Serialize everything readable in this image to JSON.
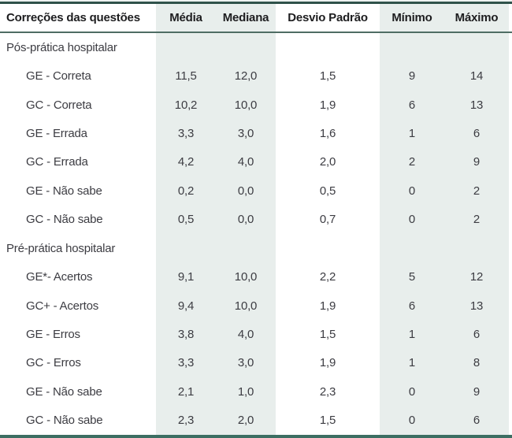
{
  "table": {
    "columns": [
      "Correções das questões",
      "Média",
      "Mediana",
      "Desvio Padrão",
      "Mínimo",
      "Máximo"
    ],
    "rows": [
      {
        "type": "group",
        "label": "Pós-prática hospitalar",
        "values": [
          "",
          "",
          "",
          "",
          ""
        ]
      },
      {
        "type": "item",
        "label": "GE - Correta",
        "values": [
          "11,5",
          "12,0",
          "1,5",
          "9",
          "14"
        ]
      },
      {
        "type": "item",
        "label": "GC - Correta",
        "values": [
          "10,2",
          "10,0",
          "1,9",
          "6",
          "13"
        ]
      },
      {
        "type": "item",
        "label": "GE - Errada",
        "values": [
          "3,3",
          "3,0",
          "1,6",
          "1",
          "6"
        ]
      },
      {
        "type": "item",
        "label": "GC - Errada",
        "values": [
          "4,2",
          "4,0",
          "2,0",
          "2",
          "9"
        ]
      },
      {
        "type": "item",
        "label": "GE - Não sabe",
        "values": [
          "0,2",
          "0,0",
          "0,5",
          "0",
          "2"
        ]
      },
      {
        "type": "item",
        "label": "GC - Não sabe",
        "values": [
          "0,5",
          "0,0",
          "0,7",
          "0",
          "2"
        ]
      },
      {
        "type": "group",
        "label": "Pré-prática hospitalar",
        "values": [
          "",
          "",
          "",
          "",
          ""
        ]
      },
      {
        "type": "item",
        "label": "GE*- Acertos",
        "values": [
          "9,1",
          "10,0",
          "2,2",
          "5",
          "12"
        ]
      },
      {
        "type": "item",
        "label": "GC+ - Acertos",
        "values": [
          "9,4",
          "10,0",
          "1,9",
          "6",
          "13"
        ]
      },
      {
        "type": "item",
        "label": "GE - Erros",
        "values": [
          "3,8",
          "4,0",
          "1,5",
          "1",
          "6"
        ]
      },
      {
        "type": "item",
        "label": "GC - Erros",
        "values": [
          "3,3",
          "3,0",
          "1,9",
          "1",
          "8"
        ]
      },
      {
        "type": "item",
        "label": "GE - Não sabe",
        "values": [
          "2,1",
          "1,0",
          "2,3",
          "0",
          "9"
        ]
      },
      {
        "type": "item",
        "label": "GC - Não sabe",
        "values": [
          "2,3",
          "2,0",
          "1,5",
          "0",
          "6"
        ]
      }
    ]
  },
  "colors": {
    "band": "#e8eeec",
    "top_border": "#2f524a",
    "header_rule": "#4f6d64",
    "bottom_border": "#3c6e62",
    "header_text": "#1d1d1f",
    "body_text": "#3c3c42"
  }
}
